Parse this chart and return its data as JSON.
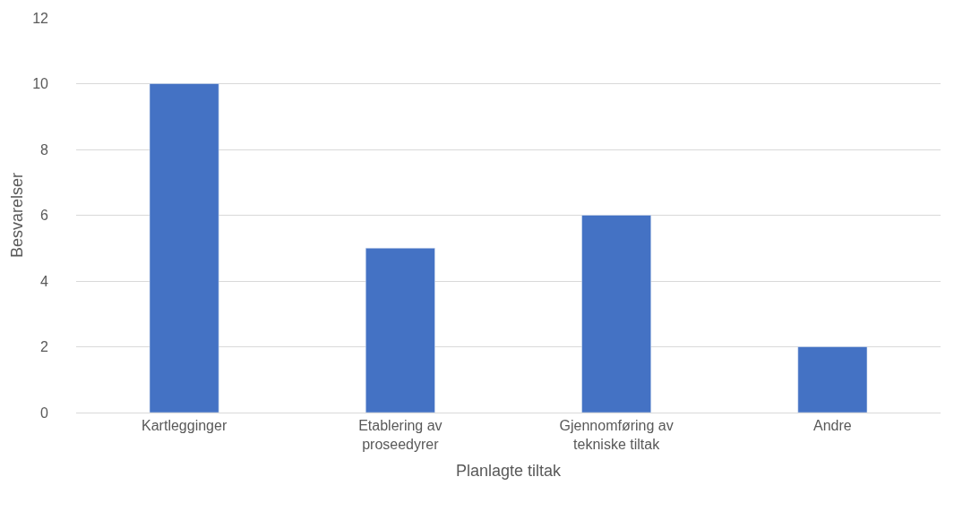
{
  "chart_data": {
    "type": "bar",
    "xlabel": "Planlagte tiltak",
    "ylabel": "Besvarelser",
    "categories": [
      "Kartlegginger",
      "Etablering av proseedyrer",
      "Gjennomføring av tekniske tiltak",
      "Andre"
    ],
    "values": [
      10,
      5,
      6,
      2
    ],
    "color": "#4472c4",
    "ylim": [
      0,
      12
    ],
    "yticks": [
      0,
      2,
      4,
      6,
      8,
      10,
      12
    ],
    "grid": "y"
  }
}
